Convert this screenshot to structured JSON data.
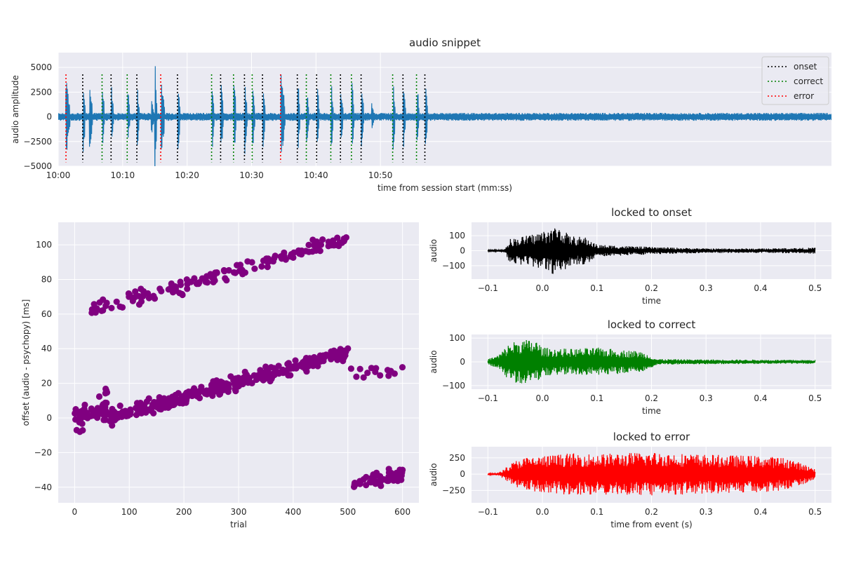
{
  "chart_data": [
    {
      "id": "snippet",
      "type": "line",
      "title": "audio snippet",
      "xlabel": "time from session start (mm:ss)",
      "ylabel": "audio amplitude",
      "xlim": [
        600,
        720
      ],
      "ylim": [
        -5000,
        6500
      ],
      "xticks": [
        600,
        610,
        620,
        630,
        640,
        650
      ],
      "xtick_labels": [
        "10:00",
        "10:10",
        "10:20",
        "10:30",
        "10:40",
        "10:50"
      ],
      "yticks": [
        -5000,
        -2500,
        0,
        2500,
        5000
      ],
      "ytick_labels": [
        "−5000",
        "−2500",
        "0",
        "2500",
        "5000"
      ],
      "grid": true,
      "legend_position": "top-right",
      "legend": [
        {
          "label": "onset",
          "color": "#000000",
          "style": "dotted"
        },
        {
          "label": "correct",
          "color": "#008000",
          "style": "dotted"
        },
        {
          "label": "error",
          "color": "#ff0000",
          "style": "dotted"
        }
      ],
      "waveform_color": "#1f77b4",
      "noise_amplitude": 400,
      "bursts": [
        {
          "t": 601.2,
          "amp": 4200,
          "dur": 0.6
        },
        {
          "t": 603.9,
          "amp": 3800,
          "dur": 0.3
        },
        {
          "t": 604.9,
          "amp": 3800,
          "dur": 0.4
        },
        {
          "t": 606.9,
          "amp": 3000,
          "dur": 0.3
        },
        {
          "t": 608.3,
          "amp": 3000,
          "dur": 0.3
        },
        {
          "t": 610.8,
          "amp": 3000,
          "dur": 0.3
        },
        {
          "t": 612.3,
          "amp": 3200,
          "dur": 0.3
        },
        {
          "t": 614.5,
          "amp": 1800,
          "dur": 0.4
        },
        {
          "t": 615.0,
          "amp": 6200,
          "dur": 0.3
        },
        {
          "t": 616.0,
          "amp": 4300,
          "dur": 0.5
        },
        {
          "t": 618.6,
          "amp": 4000,
          "dur": 0.3
        },
        {
          "t": 623.9,
          "amp": 3800,
          "dur": 0.3
        },
        {
          "t": 625.3,
          "amp": 3800,
          "dur": 0.3
        },
        {
          "t": 627.3,
          "amp": 3900,
          "dur": 0.3
        },
        {
          "t": 629.0,
          "amp": 3900,
          "dur": 0.3
        },
        {
          "t": 630.2,
          "amp": 3500,
          "dur": 0.3
        },
        {
          "t": 631.8,
          "amp": 3800,
          "dur": 0.3
        },
        {
          "t": 634.6,
          "amp": 4500,
          "dur": 0.6
        },
        {
          "t": 637.2,
          "amp": 3900,
          "dur": 0.3
        },
        {
          "t": 638.6,
          "amp": 2900,
          "dur": 0.3
        },
        {
          "t": 640.2,
          "amp": 3700,
          "dur": 0.3
        },
        {
          "t": 642.4,
          "amp": 3400,
          "dur": 0.3
        },
        {
          "t": 643.9,
          "amp": 3200,
          "dur": 0.3
        },
        {
          "t": 645.6,
          "amp": 3800,
          "dur": 0.3
        },
        {
          "t": 647.1,
          "amp": 3500,
          "dur": 0.3
        },
        {
          "t": 648.7,
          "amp": 1600,
          "dur": 0.3
        },
        {
          "t": 652.0,
          "amp": 3400,
          "dur": 0.3
        },
        {
          "t": 653.6,
          "amp": 3700,
          "dur": 0.3
        },
        {
          "t": 655.7,
          "amp": 3800,
          "dur": 0.3
        },
        {
          "t": 657.0,
          "amp": 3500,
          "dur": 0.3
        }
      ],
      "events": [
        {
          "t": 601.2,
          "kind": "error"
        },
        {
          "t": 603.8,
          "kind": "onset"
        },
        {
          "t": 606.8,
          "kind": "correct"
        },
        {
          "t": 608.2,
          "kind": "onset"
        },
        {
          "t": 610.7,
          "kind": "correct"
        },
        {
          "t": 612.2,
          "kind": "onset"
        },
        {
          "t": 615.9,
          "kind": "error"
        },
        {
          "t": 618.5,
          "kind": "onset"
        },
        {
          "t": 623.8,
          "kind": "correct"
        },
        {
          "t": 625.2,
          "kind": "onset"
        },
        {
          "t": 627.2,
          "kind": "correct"
        },
        {
          "t": 628.9,
          "kind": "onset"
        },
        {
          "t": 630.1,
          "kind": "correct"
        },
        {
          "t": 631.7,
          "kind": "onset"
        },
        {
          "t": 634.5,
          "kind": "error"
        },
        {
          "t": 637.1,
          "kind": "onset"
        },
        {
          "t": 638.5,
          "kind": "correct"
        },
        {
          "t": 640.1,
          "kind": "onset"
        },
        {
          "t": 642.3,
          "kind": "correct"
        },
        {
          "t": 643.8,
          "kind": "onset"
        },
        {
          "t": 645.5,
          "kind": "correct"
        },
        {
          "t": 647.0,
          "kind": "onset"
        },
        {
          "t": 651.9,
          "kind": "correct"
        },
        {
          "t": 653.5,
          "kind": "onset"
        },
        {
          "t": 655.6,
          "kind": "correct"
        },
        {
          "t": 656.9,
          "kind": "onset"
        }
      ]
    },
    {
      "id": "offsets",
      "type": "scatter",
      "title": "",
      "xlabel": "trial",
      "ylabel": "offset (audio - psychopy) [ms]",
      "xlim": [
        -30,
        630
      ],
      "ylim": [
        -49,
        113
      ],
      "xticks": [
        0,
        100,
        200,
        300,
        400,
        500,
        600
      ],
      "xtick_labels": [
        "0",
        "100",
        "200",
        "300",
        "400",
        "500",
        "600"
      ],
      "yticks": [
        -40,
        -20,
        0,
        20,
        40,
        60,
        80,
        100
      ],
      "ytick_labels": [
        "−40",
        "−20",
        "0",
        "20",
        "40",
        "60",
        "80",
        "100"
      ],
      "grid": true,
      "color": "#800080",
      "clusters": [
        {
          "x_start": 0,
          "x_end": 60,
          "y_start": 0,
          "y_end": 8,
          "n": 55,
          "spread": 6
        },
        {
          "x_start": 60,
          "x_end": 500,
          "y_start": 0,
          "y_end": 38,
          "n": 330,
          "spread": 3
        },
        {
          "x_start": 30,
          "x_end": 500,
          "y_start": 62,
          "y_end": 103,
          "n": 150,
          "spread": 3
        },
        {
          "x_start": 505,
          "x_end": 600,
          "y_start": 25,
          "y_end": 28,
          "n": 14,
          "spread": 3
        },
        {
          "x_start": 510,
          "x_end": 600,
          "y_start": -38,
          "y_end": -32,
          "n": 55,
          "spread": 3
        }
      ]
    },
    {
      "id": "onset",
      "type": "line",
      "title": "locked to onset",
      "xlabel": "time",
      "ylabel": "audio",
      "xlim": [
        -0.13,
        0.53
      ],
      "ylim": [
        -190,
        190
      ],
      "xticks": [
        -0.1,
        0.0,
        0.1,
        0.2,
        0.3,
        0.4,
        0.5
      ],
      "xtick_labels": [
        "−0.1",
        "0.0",
        "0.1",
        "0.2",
        "0.3",
        "0.4",
        "0.5"
      ],
      "yticks": [
        -100,
        0,
        100
      ],
      "ytick_labels": [
        "−100",
        "0",
        "100"
      ],
      "grid": true,
      "color": "#000000",
      "envelope": [
        [
          -0.1,
          5
        ],
        [
          -0.07,
          8
        ],
        [
          -0.06,
          80
        ],
        [
          -0.03,
          100
        ],
        [
          0.0,
          130
        ],
        [
          0.03,
          170
        ],
        [
          0.05,
          100
        ],
        [
          0.08,
          90
        ],
        [
          0.1,
          40
        ],
        [
          0.2,
          25
        ],
        [
          0.3,
          15
        ],
        [
          0.4,
          15
        ],
        [
          0.5,
          20
        ]
      ]
    },
    {
      "id": "correct",
      "type": "line",
      "title": "locked to correct",
      "xlabel": "time",
      "ylabel": "audio",
      "xlim": [
        -0.13,
        0.53
      ],
      "ylim": [
        -115,
        115
      ],
      "xticks": [
        -0.1,
        0.0,
        0.1,
        0.2,
        0.3,
        0.4,
        0.5
      ],
      "xtick_labels": [
        "−0.1",
        "0.0",
        "0.1",
        "0.2",
        "0.3",
        "0.4",
        "0.5"
      ],
      "yticks": [
        -100,
        0,
        100
      ],
      "ytick_labels": [
        "−100",
        "0",
        "100"
      ],
      "grid": true,
      "color": "#008000",
      "envelope": [
        [
          -0.1,
          12
        ],
        [
          -0.08,
          30
        ],
        [
          -0.06,
          80
        ],
        [
          -0.04,
          95
        ],
        [
          -0.01,
          90
        ],
        [
          0.0,
          60
        ],
        [
          0.05,
          55
        ],
        [
          0.1,
          60
        ],
        [
          0.15,
          50
        ],
        [
          0.18,
          45
        ],
        [
          0.2,
          25
        ],
        [
          0.21,
          12
        ],
        [
          0.3,
          10
        ],
        [
          0.5,
          8
        ]
      ]
    },
    {
      "id": "error",
      "type": "line",
      "title": "locked to error",
      "xlabel": "time from event (s)",
      "ylabel": "audio",
      "xlim": [
        -0.13,
        0.53
      ],
      "ylim": [
        -440,
        420
      ],
      "xticks": [
        -0.1,
        0.0,
        0.1,
        0.2,
        0.3,
        0.4,
        0.5
      ],
      "xtick_labels": [
        "−0.1",
        "0.0",
        "0.1",
        "0.2",
        "0.3",
        "0.4",
        "0.5"
      ],
      "yticks": [
        -250,
        0,
        250
      ],
      "ytick_labels": [
        "−250",
        "0",
        "250"
      ],
      "grid": true,
      "color": "#ff0000",
      "envelope": [
        [
          -0.1,
          10
        ],
        [
          -0.08,
          20
        ],
        [
          -0.06,
          150
        ],
        [
          -0.04,
          250
        ],
        [
          0.0,
          280
        ],
        [
          0.05,
          320
        ],
        [
          0.1,
          310
        ],
        [
          0.2,
          340
        ],
        [
          0.3,
          300
        ],
        [
          0.4,
          280
        ],
        [
          0.45,
          250
        ],
        [
          0.48,
          150
        ],
        [
          0.5,
          80
        ]
      ]
    }
  ]
}
